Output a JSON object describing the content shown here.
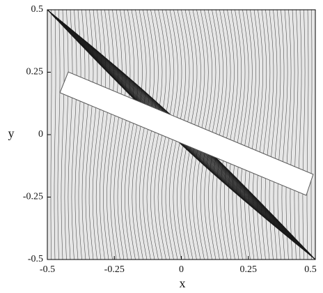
{
  "chart_data": {
    "type": "mesh",
    "x_label": "x",
    "y_label": "y",
    "xlim": [
      -0.5,
      0.5
    ],
    "ylim": [
      -0.5,
      0.5
    ],
    "xticks": [
      -0.5,
      -0.25,
      0,
      0.25,
      0.5
    ],
    "yticks": [
      -0.5,
      -0.25,
      0,
      0.25,
      0.5
    ],
    "plate": {
      "x": [
        -0.422,
        -0.453,
        0.466,
        0.492
      ],
      "y": [
        0.251,
        0.168,
        -0.243,
        -0.159
      ]
    }
  }
}
